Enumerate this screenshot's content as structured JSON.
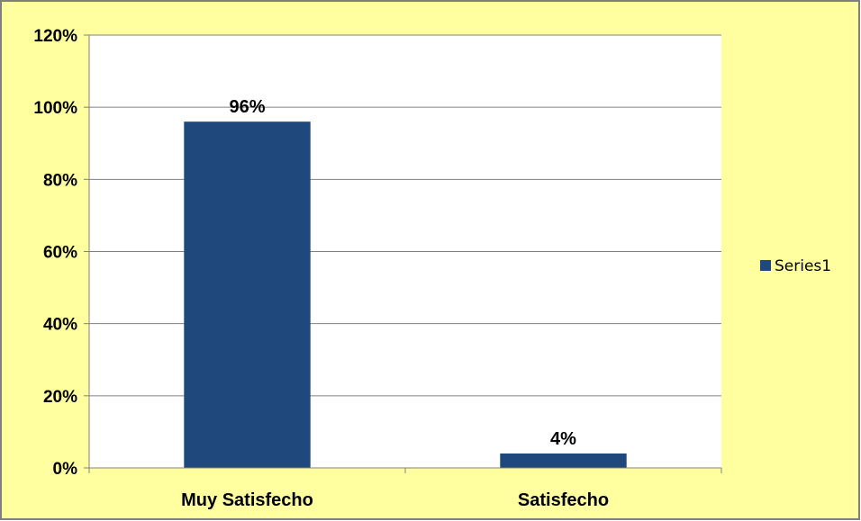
{
  "chart_data": {
    "type": "bar",
    "categories": [
      "Muy Satisfecho",
      "Satisfecho"
    ],
    "series": [
      {
        "name": "Series1",
        "values": [
          0.96,
          0.04
        ],
        "labels": [
          "96%",
          "4%"
        ]
      }
    ],
    "ylim": [
      0,
      1.2
    ],
    "y_ticks": [
      {
        "value": 0,
        "label": "0%"
      },
      {
        "value": 0.2,
        "label": "20%"
      },
      {
        "value": 0.4,
        "label": "40%"
      },
      {
        "value": 0.6,
        "label": "60%"
      },
      {
        "value": 0.8,
        "label": "80%"
      },
      {
        "value": 1.0,
        "label": "100%"
      },
      {
        "value": 1.2,
        "label": "120%"
      }
    ],
    "grid": true,
    "legend": "right",
    "colors": {
      "background": "#FFFF9F",
      "plot_area": "#FFFFFF",
      "bar": "#1F497D",
      "gridline": "#808080",
      "border": "#7F7F7F"
    }
  }
}
